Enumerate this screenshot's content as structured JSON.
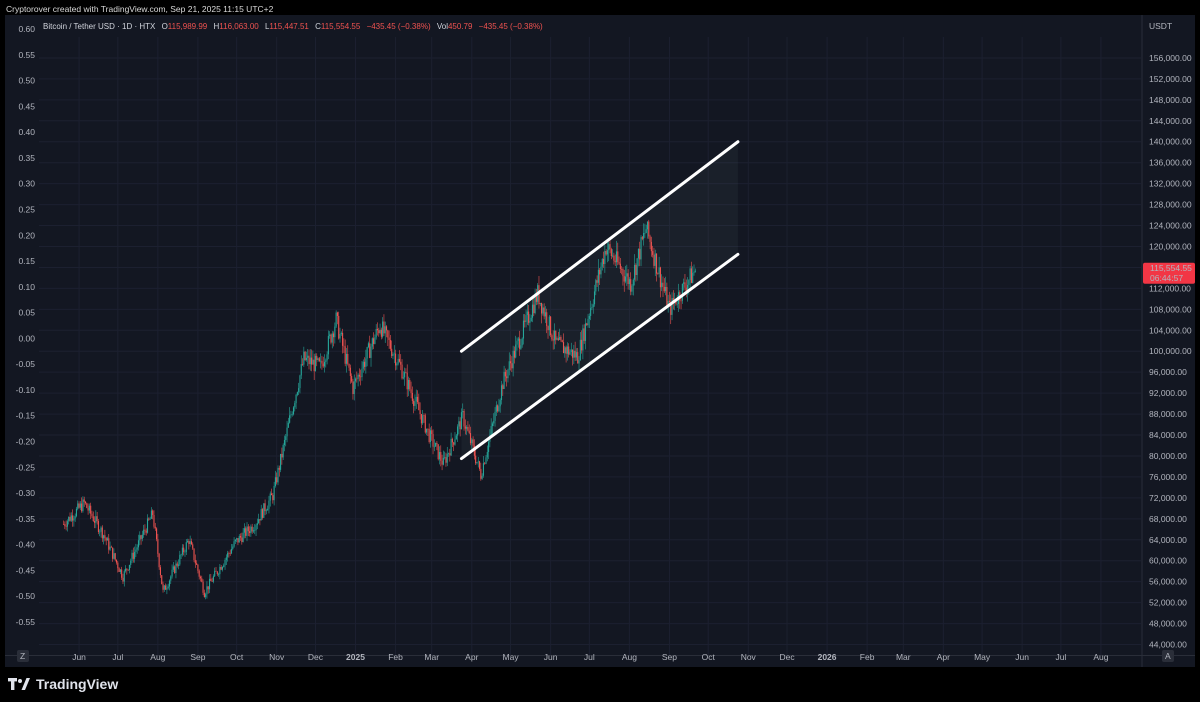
{
  "caption": "Cryptorover created with TradingView.com, Sep 21, 2025 11:15 UTC+2",
  "legend": {
    "symbol": "Bitcoin / Tether USD · 1D · HTX",
    "open_label": "O",
    "open": "115,989.99",
    "high_label": "H",
    "high": "116,063.00",
    "low_label": "L",
    "low": "115,447.51",
    "close_label": "C",
    "close": "115,554.55",
    "change": "−435.45 (−0.38%)",
    "vol_label": "Vol",
    "vol": "450.79",
    "vol_change": "−435.45 (−0.38%)"
  },
  "price_tag": {
    "price": "115,554.55",
    "countdown": "06:44:57",
    "color": "#f23645"
  },
  "currency_label": "USDT",
  "corner_left": "Z",
  "corner_right": "A",
  "brand": "TradingView",
  "colors": {
    "up": "#26a69a",
    "down": "#ef5350",
    "channel": "#ffffff",
    "background": "#131722"
  },
  "chart_data": {
    "type": "candlestick",
    "left_axis_ticks": [
      "0.60",
      "0.55",
      "0.50",
      "0.45",
      "0.40",
      "0.35",
      "0.30",
      "0.25",
      "0.20",
      "0.15",
      "0.10",
      "0.05",
      "0.00",
      "-0.05",
      "-0.10",
      "-0.15",
      "-0.20",
      "-0.25",
      "-0.30",
      "-0.35",
      "-0.40",
      "-0.45",
      "-0.50",
      "-0.55"
    ],
    "right_axis_ticks": [
      "156,000.00",
      "152,000.00",
      "148,000.00",
      "144,000.00",
      "140,000.00",
      "136,000.00",
      "132,000.00",
      "128,000.00",
      "124,000.00",
      "120,000.00",
      "116,000.00",
      "112,000.00",
      "108,000.00",
      "104,000.00",
      "100,000.00",
      "96,000.00",
      "92,000.00",
      "88,000.00",
      "84,000.00",
      "80,000.00",
      "76,000.00",
      "72,000.00",
      "68,000.00",
      "64,000.00",
      "60,000.00",
      "56,000.00",
      "52,000.00",
      "48,000.00",
      "44,000.00"
    ],
    "x_ticks": [
      "Jun",
      "Jul",
      "Aug",
      "Sep",
      "Oct",
      "Nov",
      "Dec",
      "2025",
      "Feb",
      "Mar",
      "Apr",
      "May",
      "Jun",
      "Jul",
      "Aug",
      "Sep",
      "Oct",
      "Nov",
      "Dec",
      "2026",
      "Feb",
      "Mar",
      "Apr",
      "May",
      "Jun",
      "Jul",
      "Aug"
    ],
    "bold_x_ticks": [
      "2025",
      "2026"
    ],
    "series": [
      {
        "date": "2024-05-20",
        "close": 67000
      },
      {
        "date": "2024-06-05",
        "close": 71000
      },
      {
        "date": "2024-06-20",
        "close": 65000
      },
      {
        "date": "2024-07-05",
        "close": 57000
      },
      {
        "date": "2024-07-28",
        "close": 69000
      },
      {
        "date": "2024-08-05",
        "close": 54000
      },
      {
        "date": "2024-08-25",
        "close": 64000
      },
      {
        "date": "2024-09-06",
        "close": 54000
      },
      {
        "date": "2024-09-30",
        "close": 63500
      },
      {
        "date": "2024-10-15",
        "close": 67000
      },
      {
        "date": "2024-10-29",
        "close": 72500
      },
      {
        "date": "2024-11-12",
        "close": 88000
      },
      {
        "date": "2024-11-22",
        "close": 98500
      },
      {
        "date": "2024-12-05",
        "close": 97000
      },
      {
        "date": "2024-12-17",
        "close": 106000
      },
      {
        "date": "2024-12-30",
        "close": 93000
      },
      {
        "date": "2025-01-20",
        "close": 105000
      },
      {
        "date": "2025-02-05",
        "close": 97000
      },
      {
        "date": "2025-02-27",
        "close": 84000
      },
      {
        "date": "2025-03-10",
        "close": 78500
      },
      {
        "date": "2025-03-25",
        "close": 87500
      },
      {
        "date": "2025-04-08",
        "close": 76500
      },
      {
        "date": "2025-04-25",
        "close": 94000
      },
      {
        "date": "2025-05-22",
        "close": 111000
      },
      {
        "date": "2025-06-05",
        "close": 101500
      },
      {
        "date": "2025-06-22",
        "close": 99000
      },
      {
        "date": "2025-07-14",
        "close": 120000
      },
      {
        "date": "2025-08-02",
        "close": 113000
      },
      {
        "date": "2025-08-14",
        "close": 123500
      },
      {
        "date": "2025-09-01",
        "close": 108000
      },
      {
        "date": "2025-09-21",
        "close": 115554
      }
    ],
    "channel": {
      "upper": [
        {
          "date": "2025-03-24",
          "price": 100000
        },
        {
          "date": "2025-10-24",
          "price": 140000
        }
      ],
      "lower": [
        {
          "date": "2025-03-24",
          "price": 79500
        },
        {
          "date": "2025-10-24",
          "price": 118500
        }
      ]
    },
    "y_range": [
      42000,
      160000
    ]
  }
}
